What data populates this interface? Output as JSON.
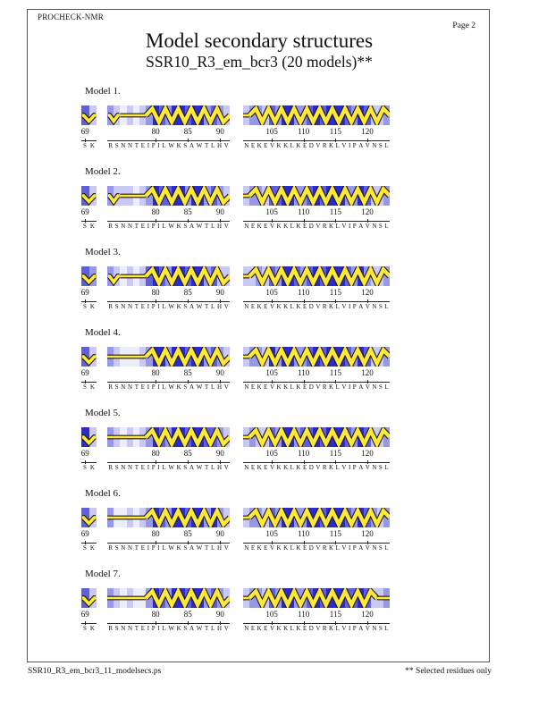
{
  "page": {
    "app_name": "PROCHECK-NMR",
    "page_label": "Page  2",
    "title": "Model secondary structures",
    "subtitle": "SSR10_R3_em_bcr3 (20 models)**",
    "footer_left": "SSR10_R3_em_bcr3_11_modelsecs.ps",
    "footer_right": "** Selected residues only"
  },
  "palette": {
    "shades": [
      "#eeeefb",
      "#c9c9f3",
      "#9898ea",
      "#5f5fdd",
      "#2b2bcd"
    ],
    "structure_fill": "#ffe838",
    "structure_outline": "#1a1a1a"
  },
  "legend": {
    "helix_glyph": "yellow zigzag ribbon",
    "coil_glyph": "yellow line",
    "bend_glyph": "small yellow v",
    "shading_meaning": "blue column shading per residue"
  },
  "segments": [
    {
      "name": "segment-69",
      "start": 69,
      "ticks": [
        69
      ],
      "sequence": "SK"
    },
    {
      "name": "segment-73",
      "start": 73,
      "ticks": [
        80,
        85,
        90
      ],
      "sequence": "RSNNTEIPILWKSAWTLHV"
    },
    {
      "name": "segment-101",
      "start": 101,
      "ticks": [
        105,
        110,
        115,
        120
      ],
      "sequence": "NEKEVKKLKEDVRKLVIPAVNSL"
    }
  ],
  "models": [
    {
      "label": "Model  1.",
      "segments": [
        {
          "shades": [
            3,
            1
          ],
          "elements": [
            [
              "bend",
              69,
              70
            ]
          ]
        },
        {
          "shades": [
            2,
            1,
            0,
            1,
            0,
            1,
            2,
            4,
            3,
            2,
            4,
            4,
            3,
            4,
            4,
            2,
            3,
            2,
            1
          ],
          "elements": [
            [
              "bend",
              73,
              74
            ],
            [
              "coil",
              75,
              78
            ],
            [
              "helix",
              79,
              91
            ]
          ]
        },
        {
          "shades": [
            1,
            2,
            2,
            1,
            3,
            2,
            4,
            4,
            2,
            2,
            3,
            4,
            3,
            4,
            4,
            4,
            3,
            2,
            4,
            3,
            1,
            1,
            2
          ],
          "elements": [
            [
              "coil",
              101,
              101
            ],
            [
              "helix",
              102,
              123
            ]
          ]
        }
      ]
    },
    {
      "label": "Model  2.",
      "segments": [
        {
          "shades": [
            3,
            1
          ],
          "elements": [
            [
              "bend",
              69,
              70
            ]
          ]
        },
        {
          "shades": [
            2,
            1,
            1,
            1,
            0,
            1,
            2,
            4,
            3,
            3,
            4,
            4,
            2,
            4,
            4,
            2,
            3,
            2,
            1
          ],
          "elements": [
            [
              "bend",
              73,
              74
            ],
            [
              "coil",
              75,
              78
            ],
            [
              "helix",
              79,
              91
            ]
          ]
        },
        {
          "shades": [
            1,
            2,
            2,
            1,
            3,
            3,
            4,
            4,
            2,
            2,
            3,
            4,
            3,
            4,
            4,
            4,
            2,
            2,
            4,
            3,
            1,
            1,
            2
          ],
          "elements": [
            [
              "coil",
              101,
              101
            ],
            [
              "helix",
              102,
              123
            ]
          ]
        }
      ]
    },
    {
      "label": "Model  3.",
      "segments": [
        {
          "shades": [
            3,
            2
          ],
          "elements": [
            [
              "bend",
              69,
              70
            ]
          ]
        },
        {
          "shades": [
            2,
            1,
            0,
            1,
            0,
            1,
            3,
            4,
            3,
            2,
            4,
            4,
            3,
            4,
            4,
            2,
            3,
            1,
            1
          ],
          "elements": [
            [
              "bend",
              73,
              74
            ],
            [
              "coil",
              75,
              78
            ],
            [
              "helix",
              79,
              91
            ]
          ]
        },
        {
          "shades": [
            1,
            1,
            2,
            1,
            3,
            2,
            4,
            4,
            3,
            2,
            3,
            4,
            3,
            4,
            4,
            4,
            3,
            2,
            4,
            2,
            1,
            1,
            2
          ],
          "elements": [
            [
              "coil",
              101,
              101
            ],
            [
              "helix",
              102,
              123
            ]
          ]
        }
      ]
    },
    {
      "label": "Model  4.",
      "segments": [
        {
          "shades": [
            3,
            1
          ],
          "elements": [
            [
              "bend",
              69,
              70
            ]
          ]
        },
        {
          "shades": [
            2,
            1,
            0,
            0,
            0,
            1,
            2,
            4,
            4,
            2,
            4,
            4,
            3,
            4,
            4,
            2,
            3,
            2,
            1
          ],
          "elements": [
            [
              "coil",
              73,
              78
            ],
            [
              "helix",
              79,
              91
            ]
          ]
        },
        {
          "shades": [
            1,
            2,
            2,
            1,
            4,
            2,
            4,
            4,
            2,
            2,
            3,
            4,
            3,
            4,
            4,
            4,
            3,
            2,
            4,
            3,
            1,
            1,
            2
          ],
          "elements": [
            [
              "coil",
              101,
              101
            ],
            [
              "helix",
              102,
              123
            ]
          ]
        }
      ]
    },
    {
      "label": "Model  5.",
      "segments": [
        {
          "shades": [
            4,
            1
          ],
          "elements": [
            [
              "bend",
              69,
              70
            ]
          ]
        },
        {
          "shades": [
            2,
            1,
            0,
            1,
            0,
            1,
            2,
            4,
            3,
            2,
            4,
            4,
            3,
            4,
            4,
            3,
            3,
            2,
            1
          ],
          "elements": [
            [
              "coil",
              73,
              78
            ],
            [
              "helix",
              79,
              91
            ]
          ]
        },
        {
          "shades": [
            1,
            2,
            1,
            1,
            3,
            2,
            4,
            4,
            2,
            3,
            3,
            4,
            3,
            4,
            4,
            4,
            3,
            2,
            4,
            3,
            1,
            1,
            2
          ],
          "elements": [
            [
              "coil",
              101,
              101
            ],
            [
              "helix",
              102,
              123
            ]
          ]
        }
      ]
    },
    {
      "label": "Model  6.",
      "segments": [
        {
          "shades": [
            3,
            1
          ],
          "elements": [
            [
              "bend",
              69,
              70
            ]
          ]
        },
        {
          "shades": [
            2,
            0,
            0,
            1,
            0,
            1,
            2,
            4,
            3,
            2,
            4,
            4,
            3,
            4,
            4,
            2,
            4,
            2,
            1
          ],
          "elements": [
            [
              "coil",
              73,
              78
            ],
            [
              "helix",
              79,
              91
            ]
          ]
        },
        {
          "shades": [
            1,
            2,
            2,
            1,
            3,
            2,
            4,
            4,
            2,
            2,
            4,
            4,
            3,
            4,
            4,
            4,
            3,
            2,
            4,
            3,
            2,
            1,
            2
          ],
          "elements": [
            [
              "coil",
              101,
              101
            ],
            [
              "helix",
              102,
              123
            ]
          ]
        }
      ]
    },
    {
      "label": "Model  7.",
      "segments": [
        {
          "shades": [
            3,
            1
          ],
          "elements": [
            [
              "bend",
              69,
              70
            ]
          ]
        },
        {
          "shades": [
            2,
            1,
            0,
            1,
            0,
            0,
            2,
            4,
            3,
            2,
            4,
            4,
            3,
            4,
            4,
            2,
            3,
            2,
            1
          ],
          "elements": [
            [
              "coil",
              73,
              78
            ],
            [
              "helix",
              79,
              91
            ]
          ]
        },
        {
          "shades": [
            1,
            2,
            2,
            1,
            3,
            2,
            4,
            4,
            2,
            2,
            3,
            4,
            3,
            4,
            4,
            4,
            3,
            3,
            4,
            3,
            1,
            1,
            2
          ],
          "elements": [
            [
              "coil",
              101,
              101
            ],
            [
              "helix",
              102,
              121
            ],
            [
              "coil",
              122,
              123
            ]
          ]
        }
      ]
    }
  ]
}
